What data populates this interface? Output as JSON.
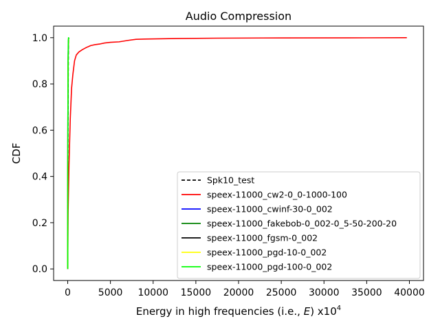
{
  "chart_data": {
    "type": "line",
    "title": "Audio Compression",
    "xlabel_prefix": "Energy in high frequencies (i.e., ",
    "xlabel_var": "E",
    "xlabel_suffix": ") x10",
    "xlabel_exp": "4",
    "ylabel": "CDF",
    "xlim": [
      -1650,
      41650
    ],
    "ylim": [
      -0.05,
      1.05
    ],
    "xticks": [
      0,
      5000,
      10000,
      15000,
      20000,
      25000,
      30000,
      35000,
      40000
    ],
    "yticks": [
      0.0,
      0.2,
      0.4,
      0.6,
      0.8,
      1.0
    ],
    "ytick_labels": [
      "0.0",
      "0.2",
      "0.4",
      "0.6",
      "0.8",
      "1.0"
    ],
    "legend_position": "lower-right",
    "series": [
      {
        "name": "Spk10_test",
        "color": "#000000",
        "dash": "dashed",
        "points": [
          [
            0,
            0.0
          ],
          [
            15,
            0.3
          ],
          [
            40,
            0.7
          ],
          [
            80,
            0.95
          ],
          [
            120,
            1.0
          ]
        ]
      },
      {
        "name": "speex-11000_cw2-0_0-1000-100",
        "color": "#ff0000",
        "dash": "solid",
        "points": [
          [
            0,
            0.0
          ],
          [
            50,
            0.25
          ],
          [
            150,
            0.45
          ],
          [
            300,
            0.65
          ],
          [
            450,
            0.78
          ],
          [
            600,
            0.84
          ],
          [
            800,
            0.9
          ],
          [
            1000,
            0.925
          ],
          [
            1300,
            0.938
          ],
          [
            1700,
            0.948
          ],
          [
            2200,
            0.958
          ],
          [
            2700,
            0.966
          ],
          [
            3200,
            0.97
          ],
          [
            3800,
            0.973
          ],
          [
            4300,
            0.977
          ],
          [
            5000,
            0.98
          ],
          [
            6000,
            0.982
          ],
          [
            6500,
            0.985
          ],
          [
            7200,
            0.989
          ],
          [
            8000,
            0.993
          ],
          [
            9000,
            0.994
          ],
          [
            12000,
            0.996
          ],
          [
            17500,
            0.998
          ],
          [
            25000,
            0.999
          ],
          [
            35000,
            0.9995
          ],
          [
            39700,
            1.0
          ]
        ]
      },
      {
        "name": "speex-11000_cwinf-30-0_002",
        "color": "#0000ff",
        "dash": "solid",
        "points": [
          [
            0,
            0.0
          ],
          [
            10,
            0.4
          ],
          [
            30,
            0.8
          ],
          [
            70,
            0.97
          ],
          [
            110,
            1.0
          ]
        ]
      },
      {
        "name": "speex-11000_fakebob-0_002-0_5-50-200-20",
        "color": "#008000",
        "dash": "solid",
        "points": [
          [
            0,
            0.0
          ],
          [
            10,
            0.4
          ],
          [
            30,
            0.8
          ],
          [
            70,
            0.97
          ],
          [
            110,
            1.0
          ]
        ]
      },
      {
        "name": "speex-11000_fgsm-0_002",
        "color": "#000000",
        "dash": "solid",
        "points": [
          [
            0,
            0.0
          ],
          [
            10,
            0.4
          ],
          [
            30,
            0.8
          ],
          [
            70,
            0.97
          ],
          [
            110,
            1.0
          ]
        ]
      },
      {
        "name": "speex-11000_pgd-10-0_002",
        "color": "#ffff00",
        "dash": "solid",
        "points": [
          [
            0,
            0.0
          ],
          [
            10,
            0.4
          ],
          [
            30,
            0.8
          ],
          [
            70,
            0.97
          ],
          [
            110,
            1.0
          ]
        ]
      },
      {
        "name": "speex-11000_pgd-100-0_002",
        "color": "#00ff00",
        "dash": "solid",
        "points": [
          [
            0,
            0.0
          ],
          [
            10,
            0.4
          ],
          [
            30,
            0.8
          ],
          [
            60,
            0.97
          ],
          [
            90,
            1.0
          ],
          [
            110,
            0.995
          ],
          [
            130,
            1.0
          ]
        ]
      }
    ]
  }
}
